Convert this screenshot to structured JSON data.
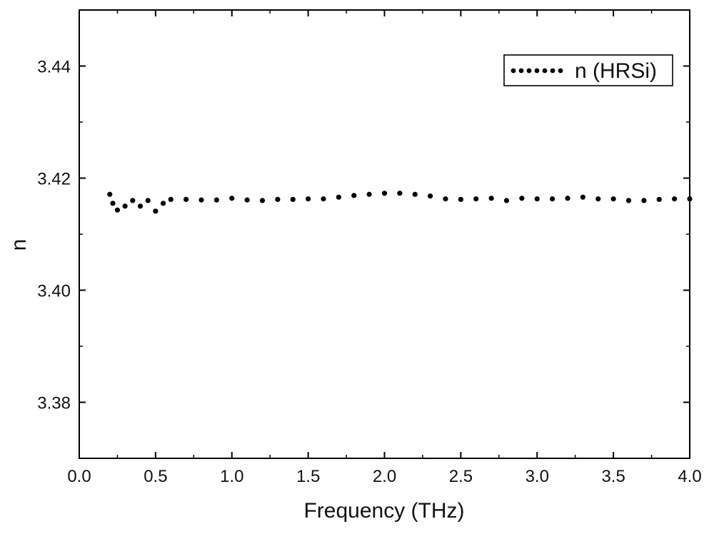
{
  "chart_data": {
    "type": "scatter",
    "title": "",
    "xlabel": "Frequency (THz)",
    "ylabel": "n",
    "xlim": [
      0.0,
      4.0
    ],
    "ylim": [
      3.37,
      3.45
    ],
    "x_ticks": [
      0.0,
      0.5,
      1.0,
      1.5,
      2.0,
      2.5,
      3.0,
      3.5,
      4.0
    ],
    "x_tick_labels": [
      "0.0",
      "0.5",
      "1.0",
      "1.5",
      "2.0",
      "2.5",
      "3.0",
      "3.5",
      "4.0"
    ],
    "y_ticks": [
      3.38,
      3.4,
      3.42,
      3.44
    ],
    "y_tick_labels": [
      "3.38",
      "3.40",
      "3.42",
      "3.44"
    ],
    "grid": false,
    "legend_position": "top-right",
    "series": [
      {
        "name": "n (HRSi)",
        "color": "#000000",
        "marker": "dot",
        "x": [
          0.2,
          0.22,
          0.25,
          0.3,
          0.35,
          0.4,
          0.45,
          0.5,
          0.55,
          0.6,
          0.7,
          0.8,
          0.9,
          1.0,
          1.1,
          1.2,
          1.3,
          1.4,
          1.5,
          1.6,
          1.7,
          1.8,
          1.9,
          2.0,
          2.1,
          2.2,
          2.3,
          2.4,
          2.5,
          2.6,
          2.7,
          2.8,
          2.9,
          3.0,
          3.1,
          3.2,
          3.3,
          3.4,
          3.5,
          3.6,
          3.7,
          3.8,
          3.9,
          4.0
        ],
        "y": [
          3.4171,
          3.4155,
          3.4143,
          3.415,
          3.416,
          3.415,
          3.416,
          3.4141,
          3.4155,
          3.4162,
          3.4162,
          3.4161,
          3.4161,
          3.4164,
          3.4161,
          3.416,
          3.4162,
          3.4162,
          3.4163,
          3.4163,
          3.4166,
          3.4169,
          3.4171,
          3.4173,
          3.4173,
          3.4171,
          3.4168,
          3.4163,
          3.4162,
          3.4163,
          3.4164,
          3.416,
          3.4164,
          3.4163,
          3.4163,
          3.4164,
          3.4166,
          3.4163,
          3.4163,
          3.416,
          3.416,
          3.4162,
          3.4163,
          3.4163
        ]
      }
    ]
  }
}
